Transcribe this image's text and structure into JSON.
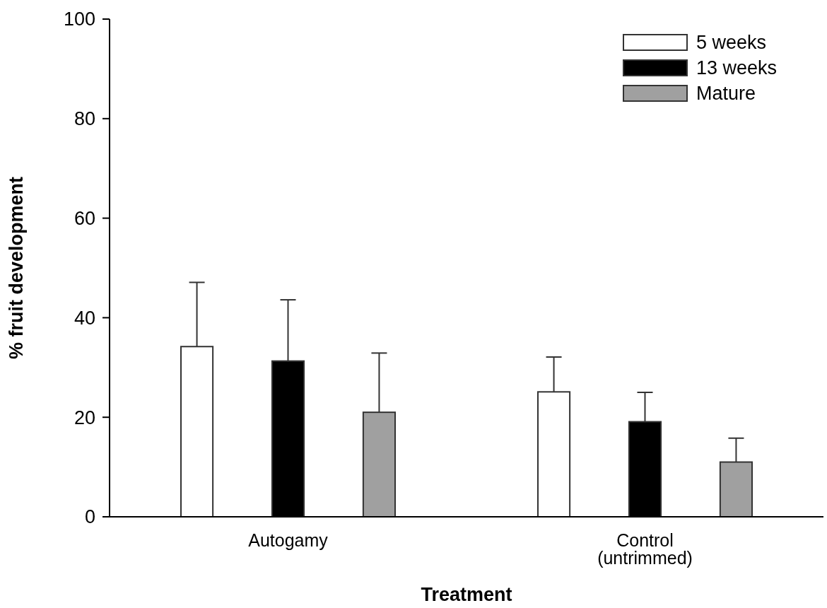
{
  "chart_data": {
    "type": "bar",
    "xlabel": "Treatment",
    "ylabel": "% fruit development",
    "categories": [
      "Autogamy",
      "Control\n(untrimmed)"
    ],
    "series": [
      {
        "name": "5 weeks",
        "color": "#ffffff",
        "values": [
          34.2,
          25.1
        ],
        "errors": [
          12.9,
          7.0
        ]
      },
      {
        "name": "13 weeks",
        "color": "#000000",
        "values": [
          31.3,
          19.1
        ],
        "errors": [
          12.3,
          5.9
        ]
      },
      {
        "name": "Mature",
        "color": "#a0a0a0",
        "values": [
          21.0,
          11.0
        ],
        "errors": [
          11.9,
          4.8
        ]
      }
    ],
    "ylim": [
      0,
      100
    ],
    "yticks": [
      0,
      20,
      40,
      60,
      80,
      100
    ],
    "legend": "top right",
    "grid": false
  }
}
